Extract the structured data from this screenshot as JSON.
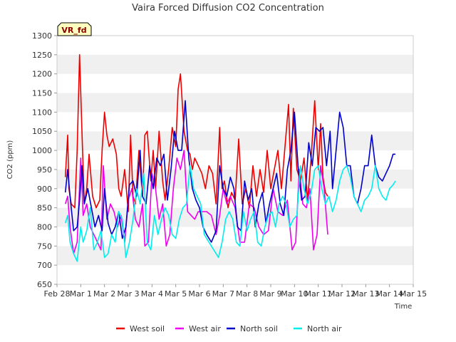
{
  "chart_data": {
    "type": "line",
    "title": "Vaira Forced Diffusion CO2 Concentration",
    "xlabel": "Time",
    "ylabel": "CO2 (ppm)",
    "badge": "VR_fd",
    "ylim": [
      650,
      1300
    ],
    "yticks": [
      650,
      700,
      750,
      800,
      850,
      900,
      950,
      1000,
      1050,
      1100,
      1150,
      1200,
      1250,
      1300
    ],
    "xlim": [
      0,
      15
    ],
    "xticks": [
      {
        "v": 0,
        "label": "Feb 28"
      },
      {
        "v": 1,
        "label": "Mar 1"
      },
      {
        "v": 2,
        "label": "Mar 2"
      },
      {
        "v": 3,
        "label": "Mar 3"
      },
      {
        "v": 4,
        "label": "Mar 4"
      },
      {
        "v": 5,
        "label": "Mar 5"
      },
      {
        "v": 6,
        "label": "Mar 6"
      },
      {
        "v": 7,
        "label": "Mar 7"
      },
      {
        "v": 8,
        "label": "Mar 8"
      },
      {
        "v": 9,
        "label": "Mar 9"
      },
      {
        "v": 10,
        "label": "Mar 10"
      },
      {
        "v": 11,
        "label": "Mar 11"
      },
      {
        "v": 12,
        "label": "Mar 12"
      },
      {
        "v": 13,
        "label": "Mar 13"
      },
      {
        "v": 14,
        "label": "Mar 14"
      },
      {
        "v": 15,
        "label": "Mar 15"
      }
    ],
    "grid": "alternating horizontal bands",
    "legend_position": "bottom-center",
    "series": [
      {
        "name": "West soil",
        "color": "#ee0000",
        "x": [
          0.35,
          0.45,
          0.5,
          0.6,
          0.75,
          0.85,
          0.95,
          1.05,
          1.15,
          1.25,
          1.35,
          1.5,
          1.65,
          1.8,
          1.9,
          2.0,
          2.1,
          2.2,
          2.35,
          2.5,
          2.6,
          2.7,
          2.85,
          3.0,
          3.1,
          3.2,
          3.3,
          3.45,
          3.6,
          3.7,
          3.8,
          3.95,
          4.05,
          4.15,
          4.3,
          4.45,
          4.55,
          4.7,
          4.85,
          5.0,
          5.1,
          5.2,
          5.35,
          5.5,
          5.6,
          5.7,
          5.8,
          5.95,
          6.1,
          6.25,
          6.4,
          6.55,
          6.7,
          6.85,
          6.95,
          7.05,
          7.2,
          7.35,
          7.5,
          7.65,
          7.8,
          7.95,
          8.1,
          8.25,
          8.4,
          8.55,
          8.7,
          8.85,
          9.0,
          9.15,
          9.3,
          9.45,
          9.6,
          9.75,
          9.85,
          9.95,
          10.1,
          10.25,
          10.4,
          10.55,
          10.7,
          10.85,
          11.0,
          11.1,
          11.2,
          11.3,
          11.4
        ],
        "y": [
          930,
          1040,
          900,
          860,
          850,
          1000,
          1250,
          1050,
          860,
          900,
          990,
          880,
          850,
          870,
          1000,
          1100,
          1040,
          1010,
          1030,
          990,
          900,
          880,
          950,
          840,
          1040,
          880,
          860,
          1000,
          880,
          1040,
          1050,
          920,
          1000,
          900,
          1050,
          920,
          870,
          950,
          1060,
          1010,
          1160,
          1200,
          1050,
          1000,
          990,
          950,
          980,
          960,
          940,
          900,
          960,
          940,
          860,
          1060,
          900,
          920,
          850,
          890,
          870,
          1030,
          860,
          900,
          850,
          960,
          880,
          950,
          890,
          1000,
          900,
          950,
          1000,
          900,
          1010,
          1120,
          920,
          1110,
          950,
          920,
          980,
          870,
          980,
          1130,
          950,
          1070,
          930,
          890,
          880
        ]
      },
      {
        "name": "West air",
        "color": "#ee00ee",
        "x": [
          0.35,
          0.45,
          0.55,
          0.7,
          0.85,
          1.0,
          1.1,
          1.25,
          1.4,
          1.55,
          1.7,
          1.85,
          1.95,
          2.1,
          2.25,
          2.4,
          2.55,
          2.7,
          2.85,
          3.0,
          3.15,
          3.3,
          3.45,
          3.6,
          3.7,
          3.85,
          4.0,
          4.15,
          4.3,
          4.45,
          4.6,
          4.75,
          4.9,
          5.05,
          5.2,
          5.35,
          5.5,
          5.65,
          5.8,
          5.95,
          6.1,
          6.3,
          6.5,
          6.7,
          6.85,
          7.0,
          7.15,
          7.3,
          7.5,
          7.7,
          7.9,
          8.1,
          8.3,
          8.5,
          8.7,
          8.9,
          9.1,
          9.3,
          9.5,
          9.7,
          9.9,
          10.05,
          10.2,
          10.35,
          10.5,
          10.65,
          10.8,
          10.95,
          11.1,
          11.25,
          11.4
        ],
        "y": [
          860,
          880,
          800,
          730,
          760,
          980,
          830,
          860,
          800,
          780,
          760,
          740,
          960,
          820,
          860,
          840,
          800,
          830,
          760,
          870,
          900,
          820,
          800,
          860,
          750,
          760,
          940,
          900,
          820,
          860,
          750,
          780,
          900,
          980,
          950,
          1000,
          840,
          830,
          820,
          840,
          840,
          840,
          830,
          780,
          830,
          900,
          860,
          880,
          850,
          760,
          760,
          860,
          850,
          800,
          780,
          790,
          900,
          840,
          830,
          870,
          740,
          760,
          950,
          860,
          850,
          900,
          740,
          780,
          960,
          900,
          780
        ]
      },
      {
        "name": "North soil",
        "color": "#0000cc",
        "x": [
          0.35,
          0.45,
          0.55,
          0.7,
          0.85,
          0.95,
          1.05,
          1.15,
          1.3,
          1.45,
          1.6,
          1.75,
          1.9,
          2.0,
          2.15,
          2.3,
          2.45,
          2.6,
          2.75,
          2.9,
          3.05,
          3.2,
          3.35,
          3.5,
          3.6,
          3.75,
          3.9,
          4.05,
          4.2,
          4.35,
          4.5,
          4.65,
          4.8,
          4.95,
          5.1,
          5.25,
          5.4,
          5.55,
          5.7,
          5.85,
          6.0,
          6.15,
          6.3,
          6.5,
          6.7,
          6.85,
          7.0,
          7.15,
          7.3,
          7.45,
          7.6,
          7.75,
          7.9,
          8.05,
          8.2,
          8.35,
          8.5,
          8.65,
          8.8,
          8.95,
          9.1,
          9.25,
          9.4,
          9.55,
          9.7,
          9.85,
          10.0,
          10.15,
          10.3,
          10.45,
          10.6,
          10.75,
          10.9,
          11.05,
          11.2,
          11.35,
          11.5,
          11.6,
          11.75,
          11.9,
          12.05,
          12.2,
          12.35,
          12.5,
          12.65,
          12.8,
          12.95,
          13.1,
          13.25,
          13.4,
          13.55,
          13.7,
          13.85,
          14.0,
          14.15,
          14.25
        ],
        "y": [
          890,
          950,
          880,
          790,
          800,
          870,
          960,
          860,
          900,
          850,
          800,
          830,
          790,
          900,
          810,
          780,
          800,
          840,
          770,
          800,
          910,
          920,
          880,
          1000,
          880,
          860,
          960,
          900,
          980,
          960,
          990,
          870,
          950,
          1050,
          1000,
          1000,
          1130,
          980,
          900,
          870,
          850,
          800,
          780,
          760,
          790,
          960,
          900,
          880,
          930,
          900,
          800,
          790,
          920,
          870,
          900,
          800,
          860,
          890,
          810,
          860,
          900,
          940,
          860,
          830,
          950,
          1000,
          1100,
          960,
          870,
          880,
          1020,
          960,
          1060,
          1050,
          1060,
          960,
          1050,
          900,
          1000,
          1100,
          1060,
          960,
          960,
          880,
          860,
          900,
          960,
          960,
          1040,
          960,
          930,
          920,
          940,
          960,
          990,
          990
        ]
      },
      {
        "name": "North air",
        "color": "#00eeee",
        "x": [
          0.35,
          0.45,
          0.55,
          0.7,
          0.85,
          1.0,
          1.1,
          1.25,
          1.4,
          1.55,
          1.7,
          1.85,
          2.0,
          2.15,
          2.3,
          2.45,
          2.6,
          2.75,
          2.9,
          3.05,
          3.2,
          3.35,
          3.5,
          3.65,
          3.8,
          3.95,
          4.1,
          4.25,
          4.4,
          4.55,
          4.7,
          4.85,
          5.0,
          5.15,
          5.3,
          5.45,
          5.6,
          5.75,
          5.9,
          6.05,
          6.2,
          6.4,
          6.6,
          6.8,
          6.95,
          7.1,
          7.25,
          7.4,
          7.55,
          7.7,
          7.85,
          8.0,
          8.15,
          8.3,
          8.45,
          8.6,
          8.75,
          8.9,
          9.05,
          9.2,
          9.35,
          9.5,
          9.65,
          9.8,
          9.95,
          10.1,
          10.25,
          10.4,
          10.55,
          10.7,
          10.85,
          11.0,
          11.15,
          11.3,
          11.45,
          11.6,
          11.75,
          11.9,
          12.05,
          12.2,
          12.35,
          12.5,
          12.65,
          12.8,
          12.95,
          13.1,
          13.25,
          13.4,
          13.55,
          13.7,
          13.85,
          14.0,
          14.15,
          14.25
        ],
        "y": [
          810,
          830,
          760,
          730,
          710,
          800,
          760,
          790,
          850,
          740,
          760,
          790,
          720,
          730,
          780,
          760,
          840,
          820,
          720,
          760,
          820,
          900,
          860,
          940,
          760,
          740,
          830,
          780,
          820,
          850,
          830,
          780,
          770,
          820,
          850,
          860,
          960,
          900,
          880,
          860,
          780,
          760,
          740,
          720,
          760,
          820,
          840,
          820,
          760,
          750,
          840,
          790,
          820,
          840,
          760,
          750,
          800,
          830,
          840,
          800,
          860,
          880,
          860,
          800,
          820,
          830,
          960,
          900,
          860,
          890,
          950,
          960,
          900,
          860,
          880,
          840,
          870,
          920,
          950,
          960,
          930,
          880,
          860,
          840,
          870,
          880,
          900,
          960,
          900,
          880,
          870,
          900,
          910,
          920
        ]
      }
    ]
  }
}
